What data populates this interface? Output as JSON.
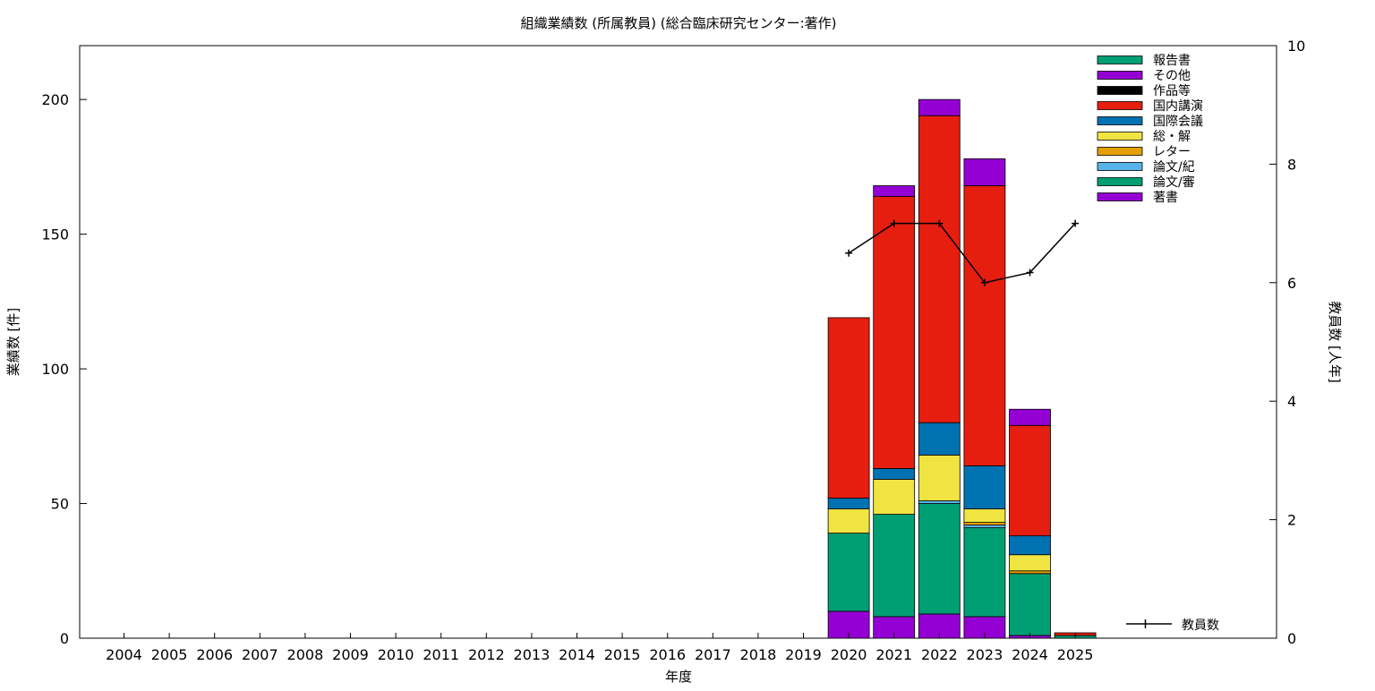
{
  "chart_data": {
    "type": "bar",
    "stacked": true,
    "title": "組織業績数 (所属教員) (総合臨床研究センター:著作)",
    "xlabel": "年度",
    "ylabel": "業績数 [件]",
    "y2label": "教員数 [人年]",
    "ylim": [
      0,
      220
    ],
    "y2lim": [
      0,
      10
    ],
    "yticks": [
      0,
      50,
      100,
      150,
      200
    ],
    "y2ticks": [
      0,
      2,
      4,
      6,
      8,
      10
    ],
    "grid": false,
    "legend_position": "top-right",
    "categories": [
      "2004",
      "2005",
      "2006",
      "2007",
      "2008",
      "2009",
      "2010",
      "2011",
      "2012",
      "2013",
      "2014",
      "2015",
      "2016",
      "2017",
      "2018",
      "2019",
      "2020",
      "2021",
      "2022",
      "2023",
      "2024",
      "2025"
    ],
    "series": [
      {
        "name": "著書",
        "color": "#9400d3",
        "values": [
          0,
          0,
          0,
          0,
          0,
          0,
          0,
          0,
          0,
          0,
          0,
          0,
          0,
          0,
          0,
          0,
          10,
          8,
          9,
          8,
          1,
          0
        ]
      },
      {
        "name": "論文/審",
        "color": "#009e73",
        "values": [
          0,
          0,
          0,
          0,
          0,
          0,
          0,
          0,
          0,
          0,
          0,
          0,
          0,
          0,
          0,
          0,
          29,
          38,
          41,
          33,
          23,
          1
        ]
      },
      {
        "name": "論文/紀",
        "color": "#56b4e9",
        "values": [
          0,
          0,
          0,
          0,
          0,
          0,
          0,
          0,
          0,
          0,
          0,
          0,
          0,
          0,
          0,
          0,
          0,
          0,
          1,
          1,
          0,
          0
        ]
      },
      {
        "name": "レター",
        "color": "#e69f00",
        "values": [
          0,
          0,
          0,
          0,
          0,
          0,
          0,
          0,
          0,
          0,
          0,
          0,
          0,
          0,
          0,
          0,
          0,
          0,
          0,
          1,
          1,
          0
        ]
      },
      {
        "name": "総・解",
        "color": "#f0e442",
        "values": [
          0,
          0,
          0,
          0,
          0,
          0,
          0,
          0,
          0,
          0,
          0,
          0,
          0,
          0,
          0,
          0,
          9,
          13,
          17,
          5,
          6,
          0
        ]
      },
      {
        "name": "国際会議",
        "color": "#0072b2",
        "values": [
          0,
          0,
          0,
          0,
          0,
          0,
          0,
          0,
          0,
          0,
          0,
          0,
          0,
          0,
          0,
          0,
          4,
          4,
          12,
          16,
          7,
          0
        ]
      },
      {
        "name": "国内講演",
        "color": "#e51e10",
        "values": [
          0,
          0,
          0,
          0,
          0,
          0,
          0,
          0,
          0,
          0,
          0,
          0,
          0,
          0,
          0,
          0,
          67,
          101,
          114,
          104,
          41,
          1
        ]
      },
      {
        "name": "作品等",
        "color": "#000000",
        "values": [
          0,
          0,
          0,
          0,
          0,
          0,
          0,
          0,
          0,
          0,
          0,
          0,
          0,
          0,
          0,
          0,
          0,
          0,
          0,
          0,
          0,
          0
        ]
      },
      {
        "name": "その他",
        "color": "#9400d3",
        "values": [
          0,
          0,
          0,
          0,
          0,
          0,
          0,
          0,
          0,
          0,
          0,
          0,
          0,
          0,
          0,
          0,
          0,
          4,
          6,
          10,
          6,
          0
        ]
      },
      {
        "name": "報告書",
        "color": "#009e73",
        "values": [
          0,
          0,
          0,
          0,
          0,
          0,
          0,
          0,
          0,
          0,
          0,
          0,
          0,
          0,
          0,
          0,
          0,
          0,
          0,
          0,
          0,
          0
        ]
      }
    ],
    "legend_order": [
      "報告書",
      "その他",
      "作品等",
      "国内講演",
      "国際会議",
      "総・解",
      "レター",
      "論文/紀",
      "論文/審",
      "著書"
    ],
    "line_series": {
      "name": "教員数",
      "axis": "y2",
      "color": "#000000",
      "categories": [
        "2020",
        "2021",
        "2022",
        "2023",
        "2024",
        "2025"
      ],
      "values": [
        6.5,
        7.0,
        7.0,
        6.0,
        6.17,
        7.0
      ]
    }
  }
}
